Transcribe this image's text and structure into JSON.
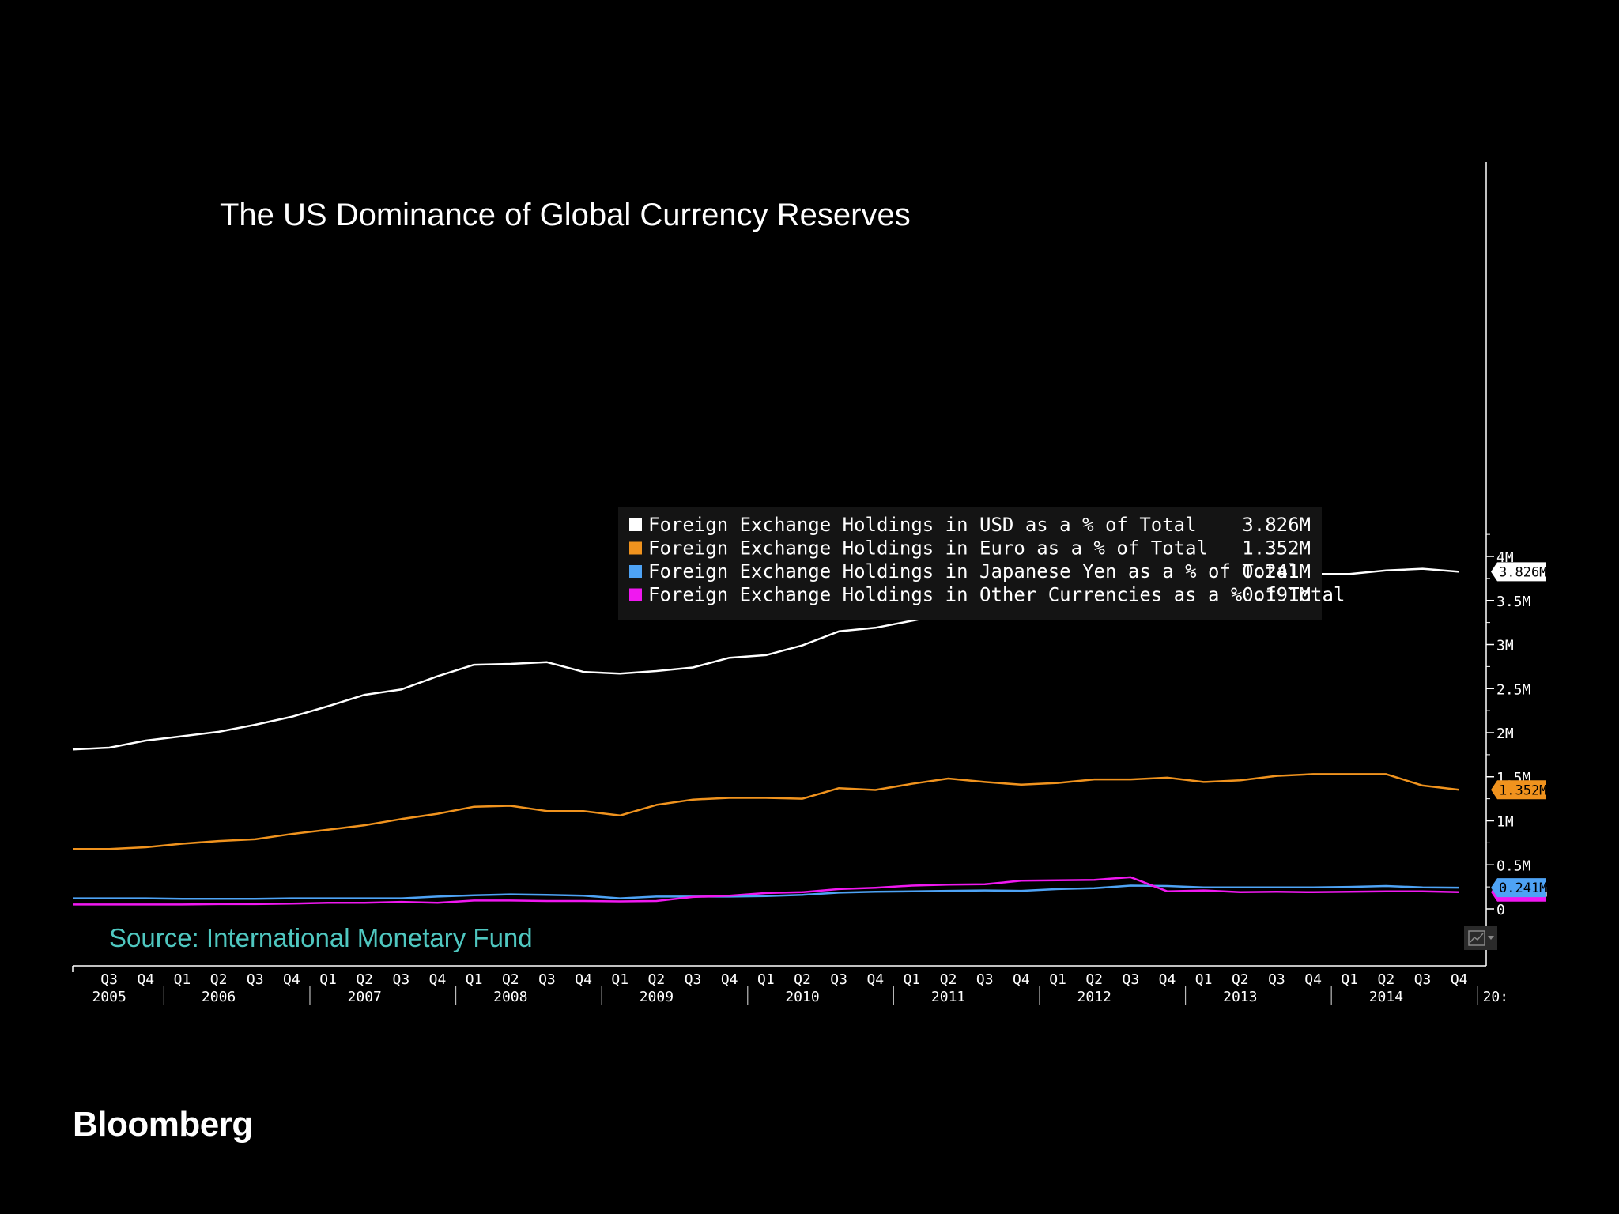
{
  "brand": "Bloomberg",
  "chart_data": {
    "type": "line",
    "title": "The US Dominance of Global Currency Reserves",
    "source": "Source: International Monetary Fund",
    "x": [
      "2005 Q2",
      "2005 Q3",
      "2005 Q4",
      "2006 Q1",
      "2006 Q2",
      "2006 Q3",
      "2006 Q4",
      "2007 Q1",
      "2007 Q2",
      "2007 Q3",
      "2007 Q4",
      "2008 Q1",
      "2008 Q2",
      "2008 Q3",
      "2008 Q4",
      "2009 Q1",
      "2009 Q2",
      "2009 Q3",
      "2009 Q4",
      "2010 Q1",
      "2010 Q2",
      "2010 Q3",
      "2010 Q4",
      "2011 Q1",
      "2011 Q2",
      "2011 Q3",
      "2011 Q4",
      "2012 Q1",
      "2012 Q2",
      "2012 Q3",
      "2012 Q4",
      "2013 Q1",
      "2013 Q2",
      "2013 Q3",
      "2013 Q4",
      "2014 Q1",
      "2014 Q2",
      "2014 Q3",
      "2014 Q4"
    ],
    "x_tick_labels": [
      "Q3",
      "Q4",
      "Q1",
      "Q2",
      "Q3",
      "Q4",
      "Q1",
      "Q2",
      "Q3",
      "Q4",
      "Q1",
      "Q2",
      "Q3",
      "Q4",
      "Q1",
      "Q2",
      "Q3",
      "Q4",
      "Q1",
      "Q2",
      "Q3",
      "Q4",
      "Q1",
      "Q2",
      "Q3",
      "Q4",
      "Q1",
      "Q2",
      "Q3",
      "Q4",
      "Q1",
      "Q2",
      "Q3",
      "Q4",
      "Q1",
      "Q2",
      "Q3",
      "Q4"
    ],
    "x_year_labels": [
      {
        "label": "2005",
        "at": "2005 Q3"
      },
      {
        "label": "2006",
        "at": "2006 Q2"
      },
      {
        "label": "2007",
        "at": "2007 Q2"
      },
      {
        "label": "2008",
        "at": "2008 Q2"
      },
      {
        "label": "2009",
        "at": "2009 Q2"
      },
      {
        "label": "2010",
        "at": "2010 Q2"
      },
      {
        "label": "2011",
        "at": "2011 Q2"
      },
      {
        "label": "2012",
        "at": "2012 Q2"
      },
      {
        "label": "2013",
        "at": "2013 Q2"
      },
      {
        "label": "2014",
        "at": "2014 Q2"
      },
      {
        "label": "20:",
        "at": "2015 Q1"
      }
    ],
    "y_ticks": [
      "0",
      "0.5M",
      "1M",
      "1.5M",
      "2M",
      "2.5M",
      "3M",
      "3.5M",
      "4M"
    ],
    "ylim": [
      0,
      4.3
    ],
    "y_unit": "M",
    "axis_position": "right",
    "grid": false,
    "legend_position": "center",
    "series": [
      {
        "name": "Foreign Exchange Holdings in USD as a % of Total",
        "last_label": "3.826M",
        "color": "#ffffff",
        "label_text_color": "#000000",
        "values": [
          1.81,
          1.83,
          1.91,
          1.96,
          2.01,
          2.09,
          2.18,
          2.3,
          2.43,
          2.49,
          2.64,
          2.77,
          2.78,
          2.8,
          2.69,
          2.67,
          2.7,
          2.74,
          2.85,
          2.88,
          2.99,
          3.15,
          3.19,
          3.27,
          3.35,
          3.47,
          3.54,
          3.53,
          3.61,
          3.69,
          3.74,
          3.77,
          3.76,
          3.8,
          3.8,
          3.8,
          3.84,
          3.86,
          3.826
        ]
      },
      {
        "name": "Foreign Exchange Holdings in Euro as a % of Total",
        "last_label": "1.352M",
        "color": "#f0931e",
        "label_text_color": "#000000",
        "values": [
          0.68,
          0.68,
          0.7,
          0.74,
          0.77,
          0.79,
          0.85,
          0.9,
          0.95,
          1.02,
          1.08,
          1.16,
          1.17,
          1.11,
          1.11,
          1.06,
          1.18,
          1.24,
          1.26,
          1.26,
          1.25,
          1.37,
          1.35,
          1.42,
          1.48,
          1.44,
          1.41,
          1.43,
          1.47,
          1.47,
          1.49,
          1.44,
          1.46,
          1.51,
          1.53,
          1.53,
          1.53,
          1.4,
          1.352
        ]
      },
      {
        "name": "Foreign Exchange Holdings in Japanese Yen as a % of Total",
        "last_label": "0.241M",
        "color": "#4ea3f5",
        "label_text_color": "#000000",
        "values": [
          0.12,
          0.12,
          0.12,
          0.115,
          0.115,
          0.115,
          0.12,
          0.12,
          0.12,
          0.12,
          0.14,
          0.155,
          0.165,
          0.16,
          0.15,
          0.12,
          0.14,
          0.14,
          0.14,
          0.145,
          0.16,
          0.185,
          0.195,
          0.2,
          0.205,
          0.21,
          0.205,
          0.225,
          0.235,
          0.265,
          0.26,
          0.245,
          0.245,
          0.245,
          0.245,
          0.25,
          0.26,
          0.245,
          0.241
        ]
      },
      {
        "name": "Foreign Exchange Holdings in Other Currencies as a % of Total",
        "last_label": "0.191M",
        "color": "#f018f0",
        "label_text_color": "#ffffff",
        "values": [
          0.05,
          0.05,
          0.05,
          0.05,
          0.055,
          0.055,
          0.06,
          0.07,
          0.07,
          0.08,
          0.07,
          0.095,
          0.095,
          0.09,
          0.09,
          0.085,
          0.09,
          0.135,
          0.15,
          0.18,
          0.19,
          0.225,
          0.24,
          0.265,
          0.275,
          0.28,
          0.32,
          0.325,
          0.33,
          0.36,
          0.2,
          0.21,
          0.19,
          0.195,
          0.19,
          0.195,
          0.2,
          0.2,
          0.191
        ]
      }
    ],
    "legend_values": [
      "3.826M",
      "1.352M",
      "0.241M",
      "0.191M"
    ]
  }
}
